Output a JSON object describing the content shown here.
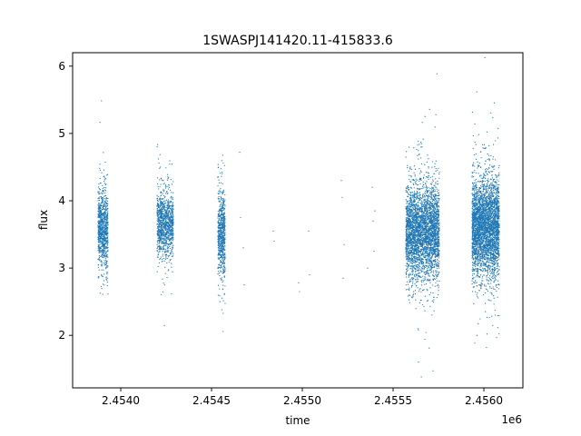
{
  "chart_data": {
    "type": "scatter",
    "title": "1SWASPJ141420.11-415833.6",
    "xlabel": "time",
    "ylabel": "flux",
    "x_offset_label": "1e6",
    "xlim": [
      2453735,
      2456215
    ],
    "ylim": [
      1.22,
      6.2
    ],
    "xticks": [
      2.454,
      2.4545,
      2.455,
      2.4555,
      2.456
    ],
    "xtick_labels": [
      "2.4540",
      "2.4545",
      "2.4550",
      "2.4555",
      "2.4560"
    ],
    "yticks": [
      2,
      3,
      4,
      5,
      6
    ],
    "ytick_labels": [
      "2",
      "3",
      "4",
      "5",
      "6"
    ],
    "grid": false,
    "marker_color": "#1f77b4",
    "series": [
      {
        "observing_seasons": [
          {
            "t_start": 2453875,
            "t_end": 2453930,
            "median_flux": 3.6,
            "spread": 0.6,
            "n_points": 900
          },
          {
            "t_start": 2454200,
            "t_end": 2454290,
            "median_flux": 3.65,
            "spread": 0.55,
            "n_points": 1100
          },
          {
            "t_start": 2454535,
            "t_end": 2454575,
            "median_flux": 3.5,
            "spread": 0.7,
            "n_points": 700
          },
          {
            "t_start": 2455570,
            "t_end": 2455755,
            "median_flux": 3.55,
            "spread": 0.75,
            "n_points": 3500
          },
          {
            "t_start": 2455935,
            "t_end": 2456085,
            "median_flux": 3.6,
            "spread": 0.8,
            "n_points": 3500
          }
        ],
        "sparse_points": [
          {
            "x": 2454655,
            "y": 4.72
          },
          {
            "x": 2454660,
            "y": 3.75
          },
          {
            "x": 2454675,
            "y": 3.3
          },
          {
            "x": 2454680,
            "y": 2.75
          },
          {
            "x": 2454840,
            "y": 3.55
          },
          {
            "x": 2454845,
            "y": 3.4
          },
          {
            "x": 2454980,
            "y": 2.78
          },
          {
            "x": 2454985,
            "y": 2.65
          },
          {
            "x": 2455035,
            "y": 3.55
          },
          {
            "x": 2455040,
            "y": 2.9
          },
          {
            "x": 2455215,
            "y": 4.3
          },
          {
            "x": 2455220,
            "y": 4.05
          },
          {
            "x": 2455225,
            "y": 2.85
          },
          {
            "x": 2455230,
            "y": 3.35
          },
          {
            "x": 2455360,
            "y": 3.0
          },
          {
            "x": 2455385,
            "y": 4.2
          },
          {
            "x": 2455390,
            "y": 3.7
          },
          {
            "x": 2455395,
            "y": 3.25
          },
          {
            "x": 2455400,
            "y": 3.85
          }
        ]
      }
    ]
  }
}
